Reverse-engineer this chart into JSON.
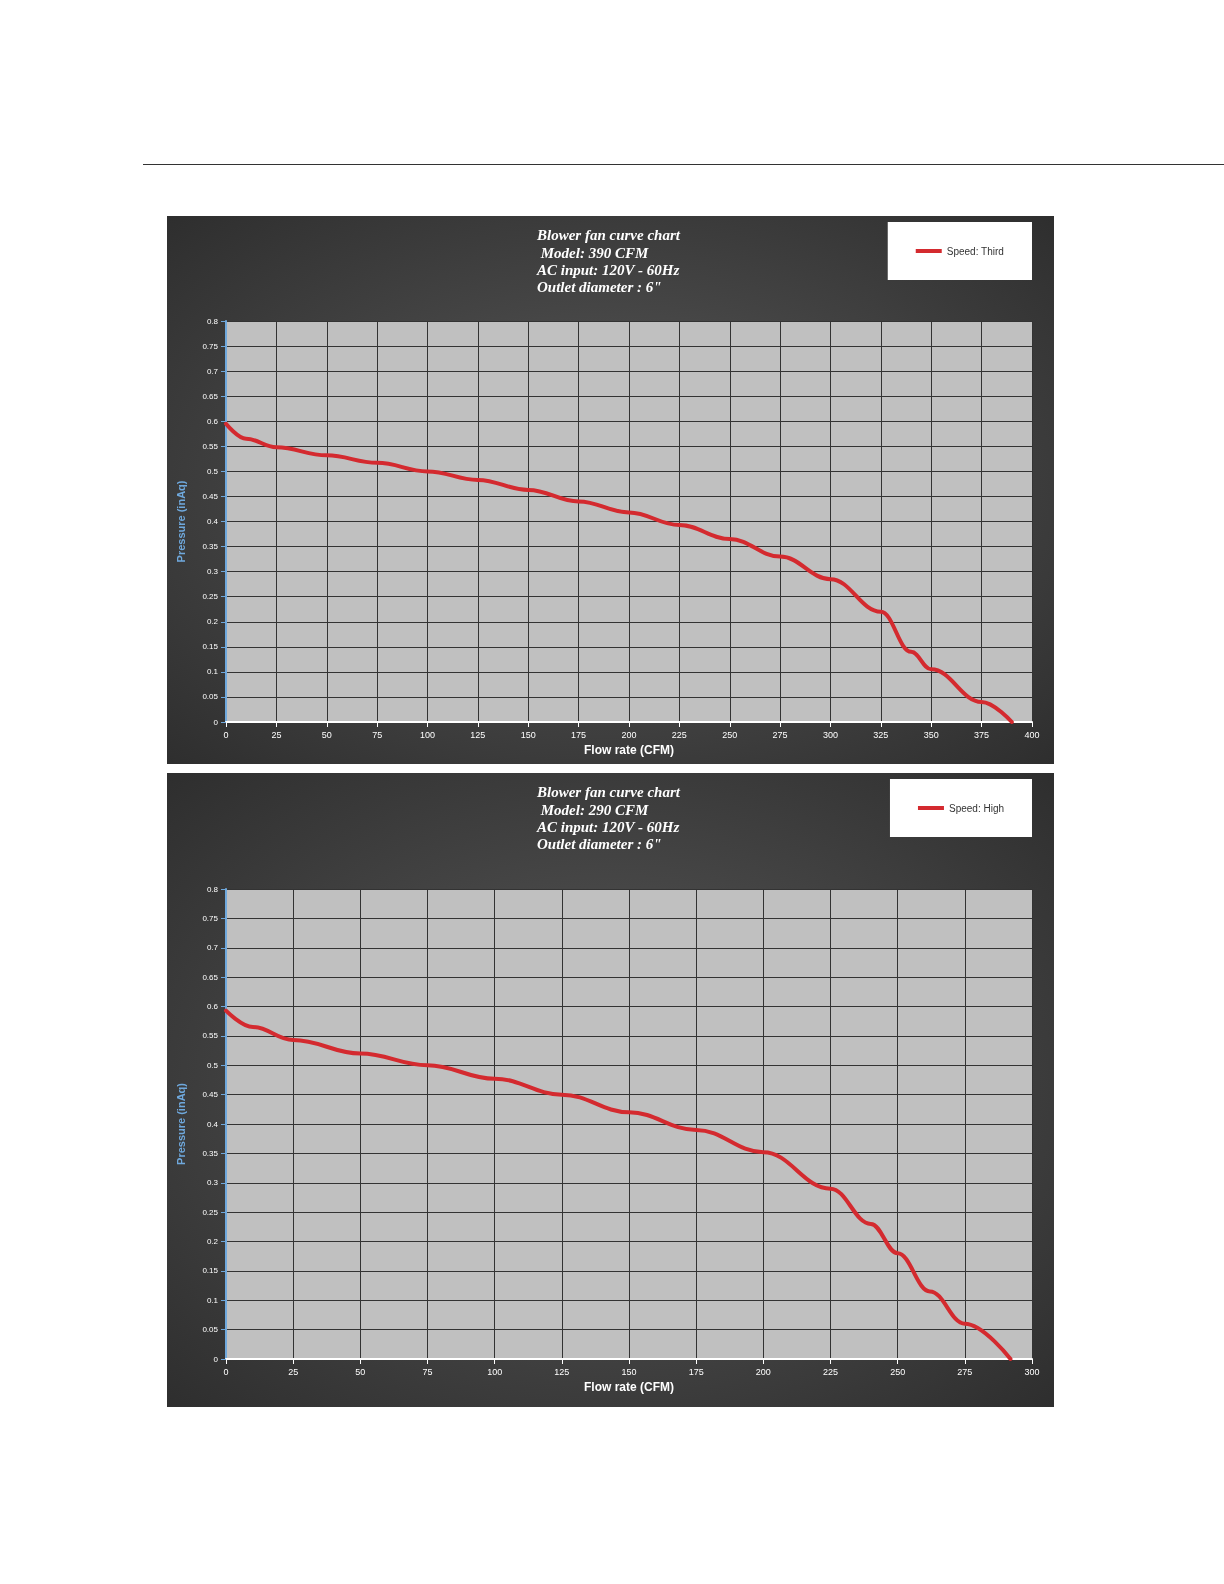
{
  "chart_data": [
    {
      "type": "line",
      "title": "Blower fan curve chart",
      "subtitle": " Model: 390 CFM\nAC input: 120V - 60Hz\nOutlet diameter : 6\"",
      "xlabel": "Flow rate (CFM)",
      "ylabel": "Pressure (inAq)",
      "xlim": [
        0,
        400
      ],
      "xticks": [
        0,
        25,
        50,
        75,
        100,
        125,
        150,
        175,
        200,
        225,
        250,
        275,
        300,
        325,
        350,
        375,
        400
      ],
      "ylim": [
        0,
        0.8
      ],
      "yticks": [
        0,
        0.05,
        0.1,
        0.15,
        0.2,
        0.25,
        0.3,
        0.35,
        0.4,
        0.45,
        0.5,
        0.55,
        0.6,
        0.65,
        0.7,
        0.75,
        0.8
      ],
      "grid": true,
      "legend": "top right",
      "marker": "none",
      "line_style": "solid",
      "series": [
        {
          "name": "Speed: Third",
          "color": "#d42a2f",
          "x": [
            0,
            10,
            25,
            50,
            75,
            100,
            125,
            150,
            175,
            200,
            225,
            250,
            275,
            300,
            325,
            340,
            350,
            375,
            390
          ],
          "values": [
            0.595,
            0.565,
            0.548,
            0.532,
            0.517,
            0.5,
            0.483,
            0.463,
            0.44,
            0.418,
            0.393,
            0.365,
            0.33,
            0.285,
            0.22,
            0.14,
            0.105,
            0.04,
            0
          ]
        }
      ]
    },
    {
      "type": "line",
      "title": "Blower fan curve chart",
      "subtitle": " Model: 290 CFM\nAC input: 120V - 60Hz\nOutlet diameter : 6\"",
      "xlabel": "Flow rate (CFM)",
      "ylabel": "Pressure (inAq)",
      "xlim": [
        0,
        300
      ],
      "xticks": [
        0,
        25,
        50,
        75,
        100,
        125,
        150,
        175,
        200,
        225,
        250,
        275,
        300
      ],
      "ylim": [
        0,
        0.8
      ],
      "yticks": [
        0,
        0.05,
        0.1,
        0.15,
        0.2,
        0.25,
        0.3,
        0.35,
        0.4,
        0.45,
        0.5,
        0.55,
        0.6,
        0.65,
        0.7,
        0.75,
        0.8
      ],
      "grid": true,
      "legend": "top right",
      "marker": "none",
      "line_style": "solid",
      "series": [
        {
          "name": "Speed: High",
          "color": "#d42a2f",
          "x": [
            0,
            10,
            25,
            50,
            75,
            100,
            125,
            150,
            175,
            200,
            225,
            240,
            250,
            262,
            275,
            292
          ],
          "values": [
            0.593,
            0.565,
            0.543,
            0.52,
            0.5,
            0.477,
            0.45,
            0.42,
            0.39,
            0.352,
            0.29,
            0.23,
            0.18,
            0.115,
            0.06,
            0
          ]
        }
      ]
    }
  ]
}
